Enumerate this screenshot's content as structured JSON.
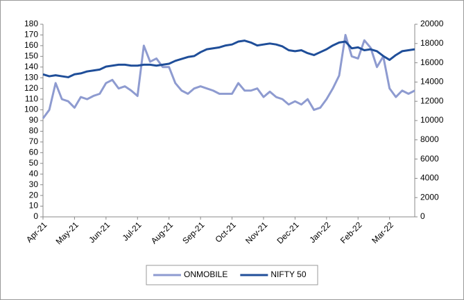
{
  "chart_data": {
    "type": "line",
    "categories": [
      "Apr-21",
      null,
      null,
      null,
      null,
      "May-21",
      null,
      null,
      null,
      null,
      "Jun-21",
      null,
      null,
      null,
      null,
      "Jul-21",
      null,
      null,
      null,
      null,
      "Aug-21",
      null,
      null,
      null,
      null,
      "Sep-21",
      null,
      null,
      null,
      null,
      "Oct-21",
      null,
      null,
      null,
      null,
      "Nov-21",
      null,
      null,
      null,
      null,
      "Dec-21",
      null,
      null,
      null,
      null,
      "Jan-22",
      null,
      null,
      null,
      null,
      "Feb-22",
      null,
      null,
      null,
      null,
      "Mar-22",
      null,
      null,
      null,
      null
    ],
    "series": [
      {
        "name": "ONMOBILE",
        "color": "#8e9bd0",
        "values": [
          92,
          100,
          125,
          110,
          108,
          102,
          112,
          110,
          113,
          115,
          125,
          128,
          120,
          122,
          118,
          113,
          160,
          145,
          148,
          140,
          140,
          125,
          118,
          115,
          120,
          122,
          120,
          118,
          115,
          115,
          115,
          125,
          118,
          118,
          120,
          112,
          117,
          112,
          110,
          105,
          108,
          105,
          110,
          100,
          102,
          110,
          120,
          132,
          170,
          150,
          148,
          165,
          158,
          140,
          150,
          120,
          112,
          118,
          115,
          118
        ]
      },
      {
        "name": "NIFTY 50",
        "color": "#1f4e99",
        "axis": "y2",
        "values": [
          14800,
          14600,
          14700,
          14600,
          14500,
          14800,
          14900,
          15100,
          15200,
          15300,
          15600,
          15700,
          15800,
          15800,
          15700,
          15700,
          15800,
          15800,
          15700,
          15800,
          15900,
          16200,
          16400,
          16600,
          16700,
          17100,
          17400,
          17500,
          17600,
          17800,
          17900,
          18200,
          18300,
          18100,
          17800,
          17900,
          18000,
          17900,
          17700,
          17300,
          17200,
          17300,
          17000,
          16800,
          17100,
          17400,
          17800,
          18100,
          18200,
          17500,
          17600,
          17300,
          17400,
          17200,
          16700,
          16300,
          16800,
          17200,
          17300,
          17400
        ]
      }
    ],
    "ylim": [
      0,
      180
    ],
    "yticks": [
      0,
      10,
      20,
      30,
      40,
      50,
      60,
      70,
      80,
      90,
      100,
      110,
      120,
      130,
      140,
      150,
      160,
      170,
      180
    ],
    "y2lim": [
      0,
      20000
    ],
    "y2ticks": [
      0,
      2000,
      4000,
      6000,
      8000,
      10000,
      12000,
      14000,
      16000,
      18000,
      20000
    ],
    "grid": false,
    "legend": "bottom"
  }
}
